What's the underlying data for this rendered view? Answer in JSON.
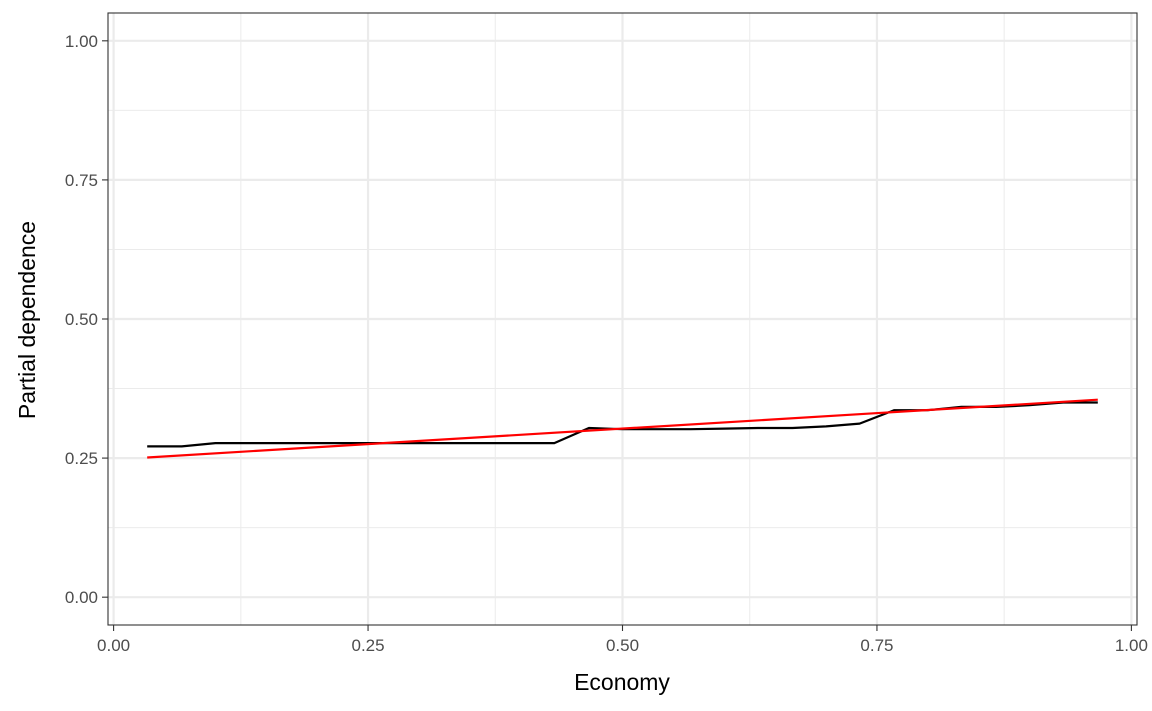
{
  "chart_data": {
    "type": "line",
    "title": "",
    "xlabel": "Economy",
    "ylabel": "Partial dependence",
    "xlim": [
      -0.0055,
      1.0055
    ],
    "ylim": [
      -0.05,
      1.05
    ],
    "x_ticks": [
      0.0,
      0.25,
      0.5,
      0.75,
      1.0
    ],
    "x_tick_labels": [
      "0.00",
      "0.25",
      "0.50",
      "0.75",
      "1.00"
    ],
    "y_ticks": [
      0.0,
      0.25,
      0.5,
      0.75,
      1.0
    ],
    "y_tick_labels": [
      "0.00",
      "0.25",
      "0.50",
      "0.75",
      "1.00"
    ],
    "x_minor_ticks": [
      0.125,
      0.375,
      0.625,
      0.875
    ],
    "y_minor_ticks": [
      0.125,
      0.375,
      0.625,
      0.875
    ],
    "grid": true,
    "legend": "none",
    "series": [
      {
        "color": "#000000",
        "x": [
          0.033,
          0.067,
          0.1,
          0.133,
          0.167,
          0.2,
          0.233,
          0.267,
          0.3,
          0.333,
          0.367,
          0.4,
          0.433,
          0.467,
          0.5,
          0.533,
          0.567,
          0.6,
          0.633,
          0.667,
          0.7,
          0.733,
          0.767,
          0.8,
          0.833,
          0.867,
          0.9,
          0.933,
          0.967
        ],
        "y": [
          0.271,
          0.271,
          0.277,
          0.277,
          0.277,
          0.277,
          0.277,
          0.277,
          0.277,
          0.277,
          0.277,
          0.277,
          0.277,
          0.304,
          0.302,
          0.302,
          0.302,
          0.303,
          0.304,
          0.304,
          0.307,
          0.312,
          0.336,
          0.336,
          0.342,
          0.342,
          0.345,
          0.35,
          0.35
        ]
      },
      {
        "color": "#ff0000",
        "x": [
          0.033,
          0.967
        ],
        "y": [
          0.251,
          0.355
        ]
      }
    ]
  }
}
